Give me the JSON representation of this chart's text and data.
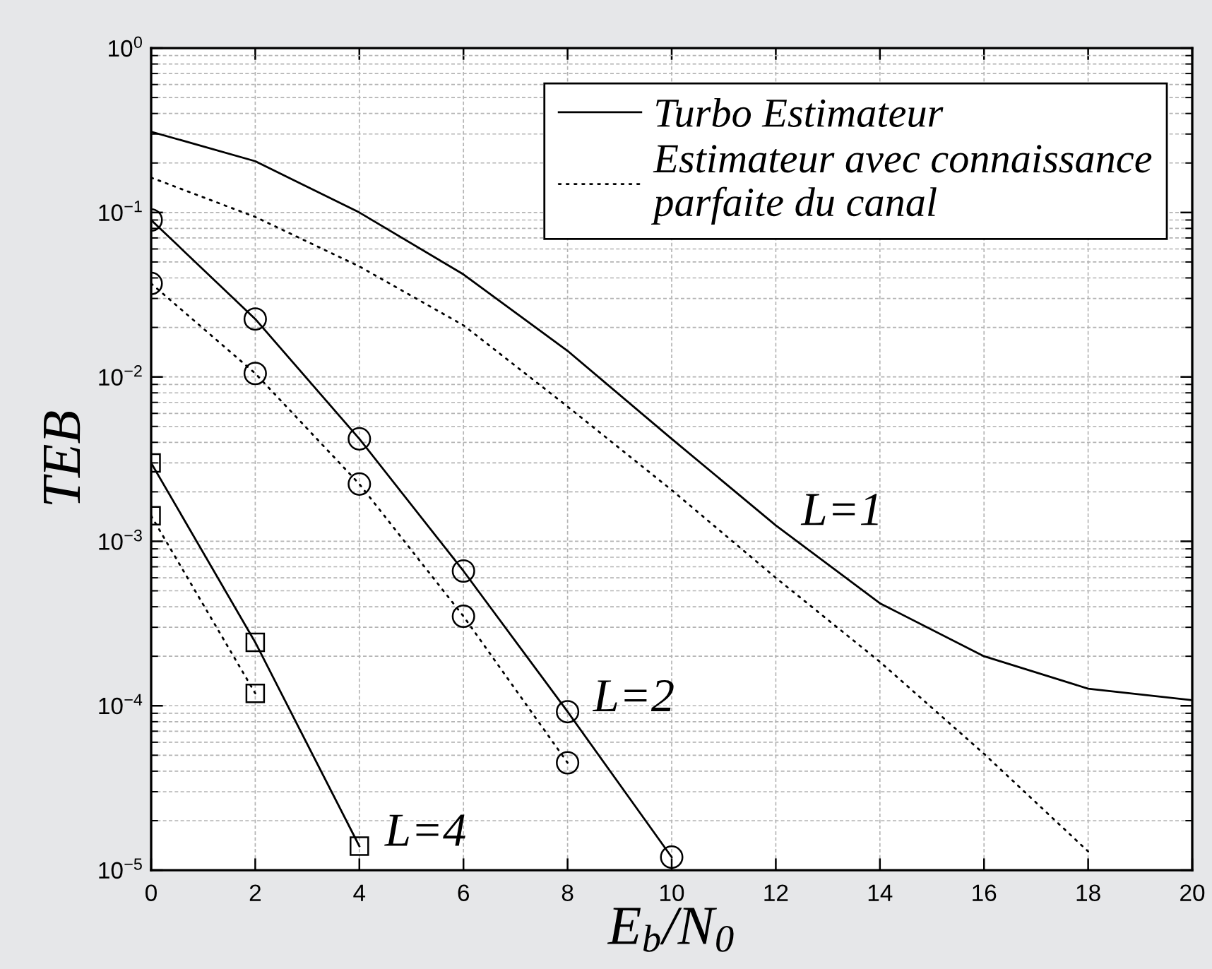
{
  "chart_data": {
    "type": "line",
    "xlabel": "E$_{b}$/N$_{0}$",
    "ylabel": "TEB",
    "log": "y",
    "xlim": [
      0,
      20
    ],
    "xticks": [
      0,
      2,
      4,
      6,
      8,
      10,
      12,
      14,
      16,
      18,
      20
    ],
    "ylim": [
      1e-05,
      1
    ],
    "yticks": [
      {
        "value": 1e-05,
        "label": "10$^{−5}$"
      },
      {
        "value": 0.0001,
        "label": "10$^{−4}$"
      },
      {
        "value": 0.001,
        "label": "10$^{−3}$"
      },
      {
        "value": 0.01,
        "label": "10$^{−2}$"
      },
      {
        "value": 0.1,
        "label": "10$^{−1}$"
      },
      {
        "value": 1,
        "label": "10$^{0}$"
      }
    ],
    "grid": true,
    "legend": "top right",
    "series": [
      {
        "name": "Turbo Estimateur",
        "color": "#000000",
        "line_style": "solid",
        "marker": "none",
        "x": [
          0,
          2,
          4,
          6,
          8,
          10,
          12,
          14,
          16,
          18,
          20
        ],
        "values": [
          0.31,
          0.205,
          0.1,
          0.042,
          0.0144,
          0.0042,
          0.00125,
          0.00042,
          0.0002,
          0.000127,
          0.000108
        ]
      },
      {
        "name": "Estimateur avec connaissance\nparfaite du canal",
        "color": "#000000",
        "line_style": "dotted",
        "marker": "none",
        "x": [
          0,
          2,
          4,
          6,
          8,
          10,
          12,
          14,
          16,
          18
        ],
        "values": [
          0.163,
          0.094,
          0.047,
          0.0206,
          0.0066,
          0.00205,
          0.0006,
          0.000185,
          5.1e-05,
          1.3e-05
        ]
      },
      {
        "color": "#000000",
        "line_style": "solid",
        "marker": "circle",
        "x": [
          0,
          2,
          4,
          6,
          8,
          10
        ],
        "values": [
          0.09,
          0.0225,
          0.0042,
          0.00066,
          9.2e-05,
          1.2e-05
        ]
      },
      {
        "color": "#000000",
        "line_style": "dotted",
        "marker": "circle",
        "x": [
          0,
          2,
          4,
          6,
          8
        ],
        "values": [
          0.037,
          0.0105,
          0.00223,
          0.00035,
          4.5e-05
        ]
      },
      {
        "color": "#000000",
        "line_style": "solid",
        "marker": "square",
        "x": [
          0,
          2,
          4
        ],
        "values": [
          0.003,
          0.000243,
          1.4e-05
        ]
      },
      {
        "color": "#000000",
        "line_style": "dotted",
        "marker": "square",
        "x": [
          0,
          2
        ],
        "values": [
          0.00143,
          0.000119
        ]
      }
    ],
    "annotations": [
      {
        "text": "L=1",
        "x": 12,
        "y": 0.00125
      },
      {
        "text": "L=2",
        "x": 8,
        "y": 9.2e-05
      },
      {
        "text": "L=4",
        "x": 4,
        "y": 1.4e-05
      }
    ]
  }
}
